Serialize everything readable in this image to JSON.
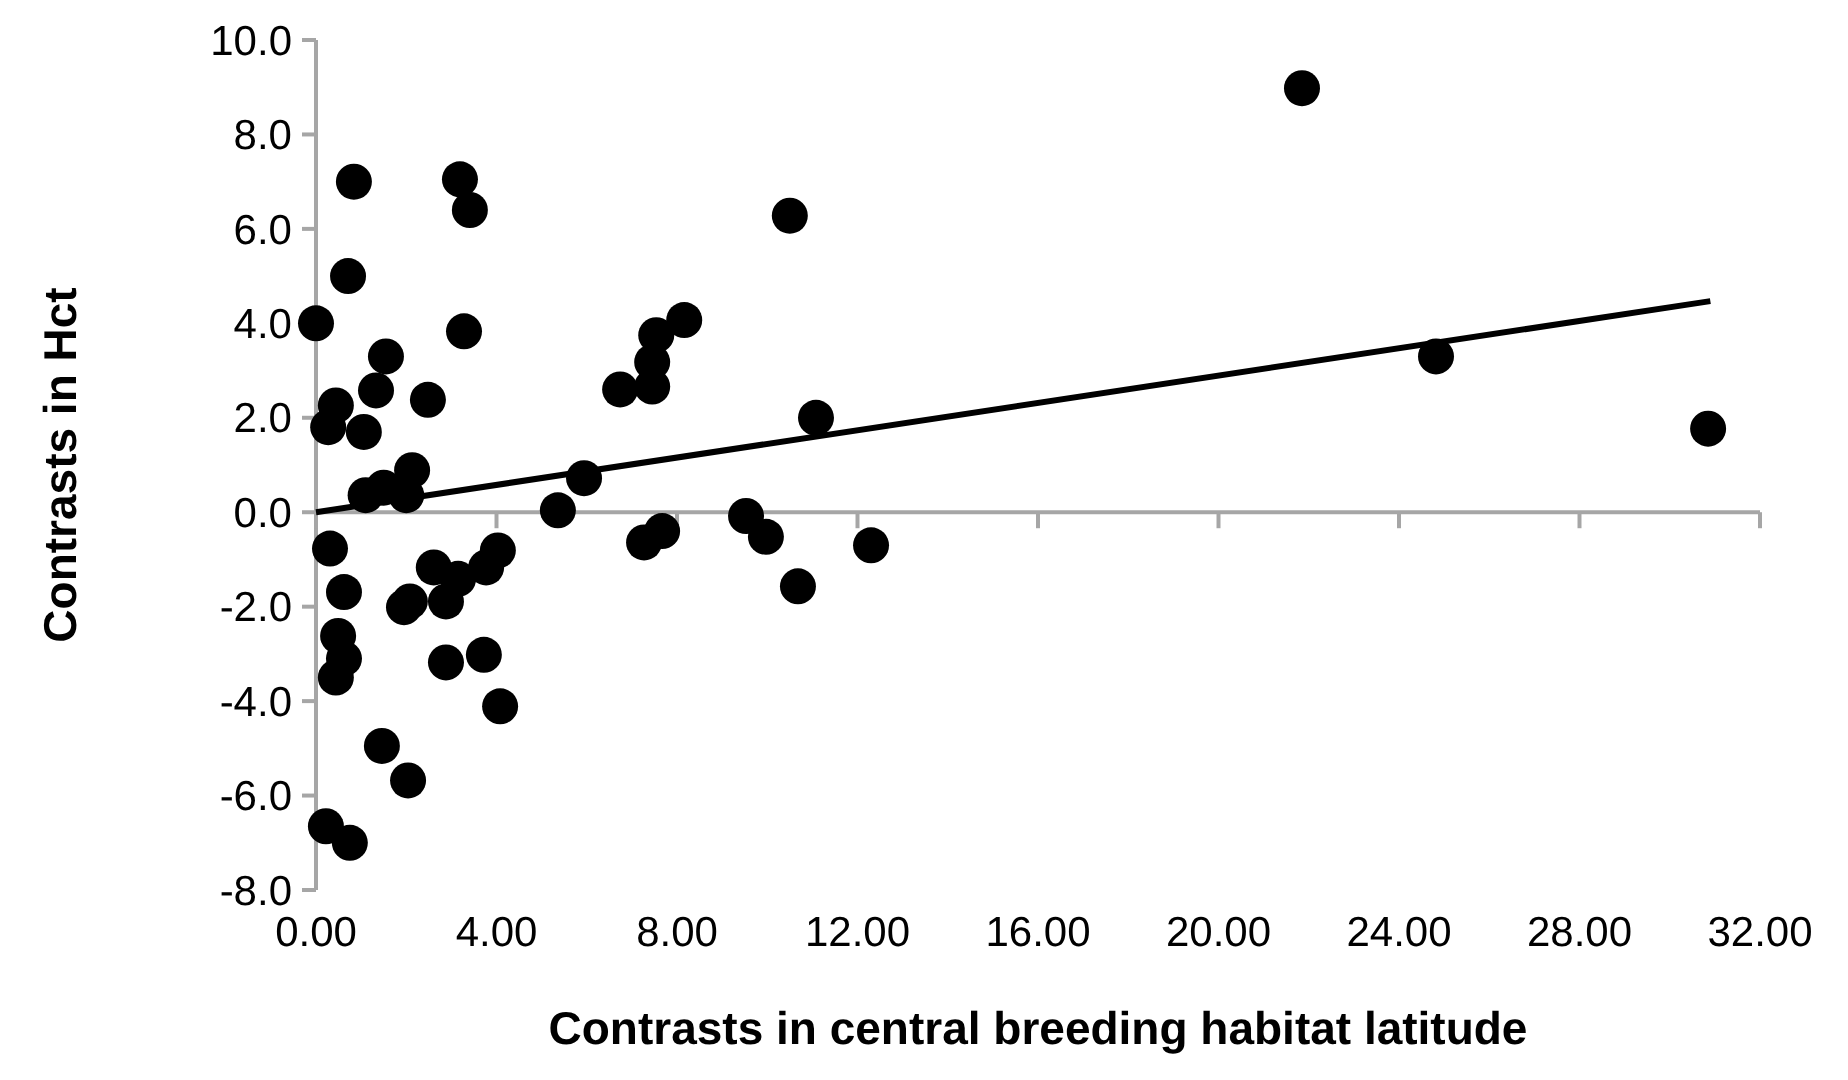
{
  "chart_data": {
    "type": "scatter",
    "xlabel": "Contrasts in central breeding habitat latitude",
    "ylabel": "Contrasts in Hct",
    "xlim": [
      0,
      32
    ],
    "ylim": [
      -8,
      10
    ],
    "xticks": [
      {
        "value": 0,
        "label": "0.00"
      },
      {
        "value": 4,
        "label": "4.00"
      },
      {
        "value": 8,
        "label": "8.00"
      },
      {
        "value": 12,
        "label": "12.00"
      },
      {
        "value": 16,
        "label": "16.00"
      },
      {
        "value": 20,
        "label": "20.00"
      },
      {
        "value": 24,
        "label": "24.00"
      },
      {
        "value": 28,
        "label": "28.00"
      },
      {
        "value": 32,
        "label": "32.00"
      }
    ],
    "yticks": [
      {
        "value": -8,
        "label": "-8.0"
      },
      {
        "value": -6,
        "label": "-6.0"
      },
      {
        "value": -4,
        "label": "-4.0"
      },
      {
        "value": -2,
        "label": "-2.0"
      },
      {
        "value": 0,
        "label": "0.0"
      },
      {
        "value": 2,
        "label": "2.0"
      },
      {
        "value": 4,
        "label": "4.0"
      },
      {
        "value": 6,
        "label": "6.0"
      },
      {
        "value": 8,
        "label": "8.0"
      },
      {
        "value": 10,
        "label": "10.0"
      }
    ],
    "series": [
      {
        "color": "#000000",
        "marker": "circle",
        "x": [
          0,
          0.84,
          0.71,
          1.55,
          1.33,
          0.44,
          0.27,
          1.06,
          2.48,
          3.19,
          3.41,
          3.28,
          2.13,
          2.0,
          1.5,
          1.1,
          5.94,
          5.36,
          6.74,
          0.31,
          0.62,
          0.49,
          0.62,
          0.44,
          1.46,
          2.04,
          0.22,
          0.75,
          1.95,
          2.08,
          2.61,
          2.88,
          3.15,
          4.03,
          3.77,
          2.88,
          3.72,
          4.08,
          10.5,
          8.16,
          7.54,
          7.45,
          7.45,
          11.08,
          7.27,
          7.67,
          9.53,
          9.97,
          12.3,
          10.68,
          21.85,
          24.82,
          30.85
        ],
        "values": [
          4.0,
          7.0,
          5.0,
          3.3,
          2.58,
          2.26,
          1.8,
          1.7,
          2.38,
          7.05,
          6.4,
          3.83,
          0.89,
          0.36,
          0.52,
          0.36,
          0.72,
          0.04,
          2.6,
          -0.77,
          -1.69,
          -2.62,
          -3.1,
          -3.5,
          -4.95,
          -5.68,
          -6.65,
          -7.0,
          -2.01,
          -1.89,
          -1.17,
          -1.89,
          -1.41,
          -0.81,
          -1.17,
          -3.18,
          -3.02,
          -4.11,
          6.28,
          4.07,
          3.75,
          3.18,
          2.66,
          2.0,
          -0.64,
          -0.4,
          -0.08,
          -0.52,
          -0.7,
          -1.57,
          8.98,
          3.3,
          1.77
        ]
      },
      {
        "type": "line",
        "color": "#000000",
        "line_style": "solid",
        "x": [
          0,
          30.9
        ],
        "values": [
          0,
          4.47
        ]
      }
    ]
  }
}
